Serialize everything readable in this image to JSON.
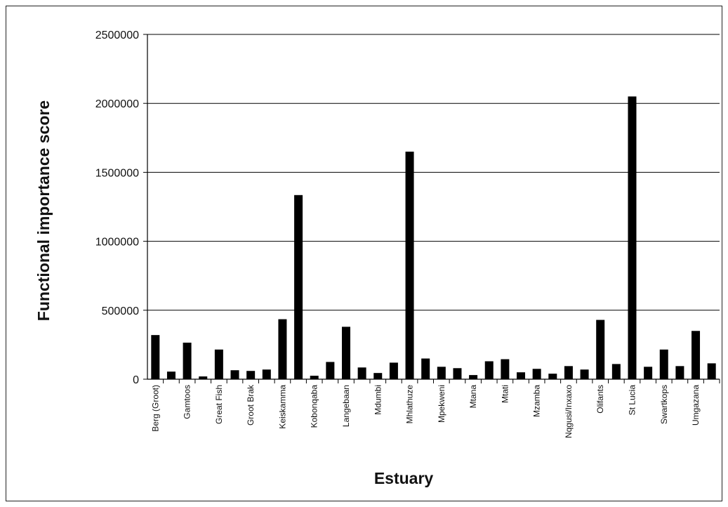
{
  "chart_data": {
    "type": "bar",
    "xlabel": "Estuary",
    "ylabel": "Functional importance score",
    "ylim": [
      0,
      2500000
    ],
    "yticks": [
      0,
      500000,
      1000000,
      1500000,
      2000000,
      2500000
    ],
    "ytick_labels": [
      "0",
      "500000",
      "1000000",
      "1500000",
      "2000000",
      "2500000"
    ],
    "grid": true,
    "legend": "none",
    "bar_color": "#000000",
    "categories": [
      "Berg (Groot)",
      "",
      "Gamtoos",
      "",
      "Great Fish",
      "",
      "Groot Brak",
      "",
      "Keiskamma",
      "",
      "Kobonqaba",
      "",
      "Langebaan",
      "",
      "Mdumbi",
      "",
      "Mhlathuze",
      "",
      "Mpekweni",
      "",
      "Mtana",
      "",
      "Mtati",
      "",
      "Mzamba",
      "",
      "Nqgusi/Inxaxo",
      "",
      "Olifants",
      "",
      "St Lucia",
      "",
      "Swartkops",
      "",
      "Umgazana",
      ""
    ],
    "values": [
      320000,
      55000,
      265000,
      20000,
      215000,
      65000,
      60000,
      70000,
      435000,
      1335000,
      25000,
      125000,
      380000,
      85000,
      45000,
      120000,
      1650000,
      150000,
      90000,
      80000,
      30000,
      130000,
      145000,
      50000,
      75000,
      40000,
      95000,
      70000,
      430000,
      110000,
      2050000,
      90000,
      215000,
      95000,
      350000,
      115000
    ]
  }
}
